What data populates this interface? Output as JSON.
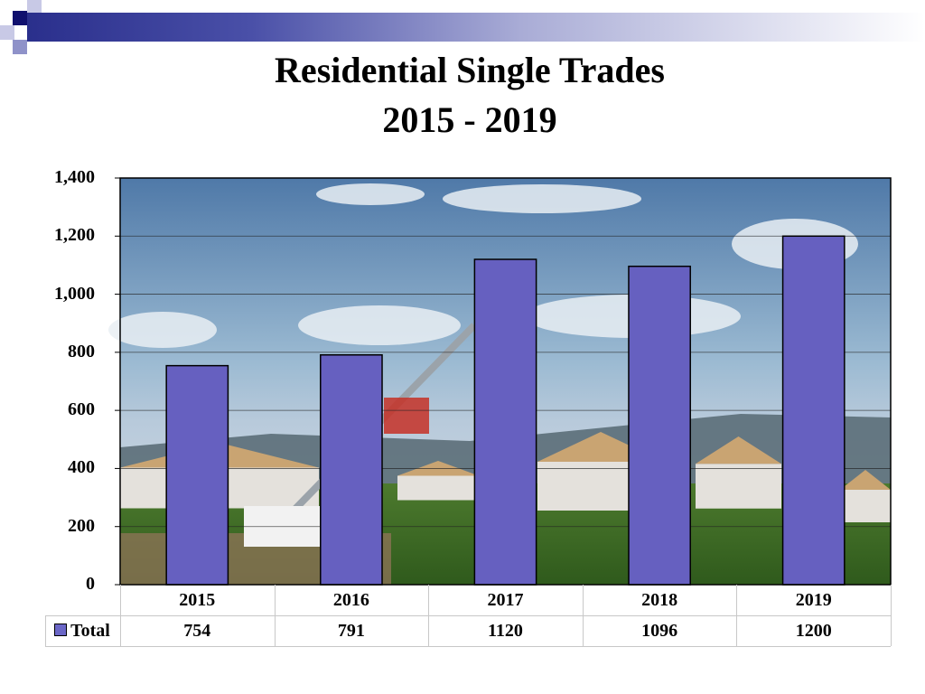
{
  "slide": {
    "title_line1": "Residential Single Trades",
    "title_line2": "2015 - 2019",
    "accent_color": "#2a2f8c",
    "bar_color": "#6660c0",
    "background_image": "construction-site-photo"
  },
  "chart_data": {
    "type": "bar",
    "categories": [
      "2015",
      "2016",
      "2017",
      "2018",
      "2019"
    ],
    "series": [
      {
        "name": "Total",
        "values": [
          754,
          791,
          1120,
          1096,
          1200
        ]
      }
    ],
    "y_ticks": [
      "0",
      "200",
      "400",
      "600",
      "800",
      "1,000",
      "1,200",
      "1,400"
    ],
    "ylim": [
      0,
      1400
    ],
    "grid": true,
    "data_table": true
  }
}
